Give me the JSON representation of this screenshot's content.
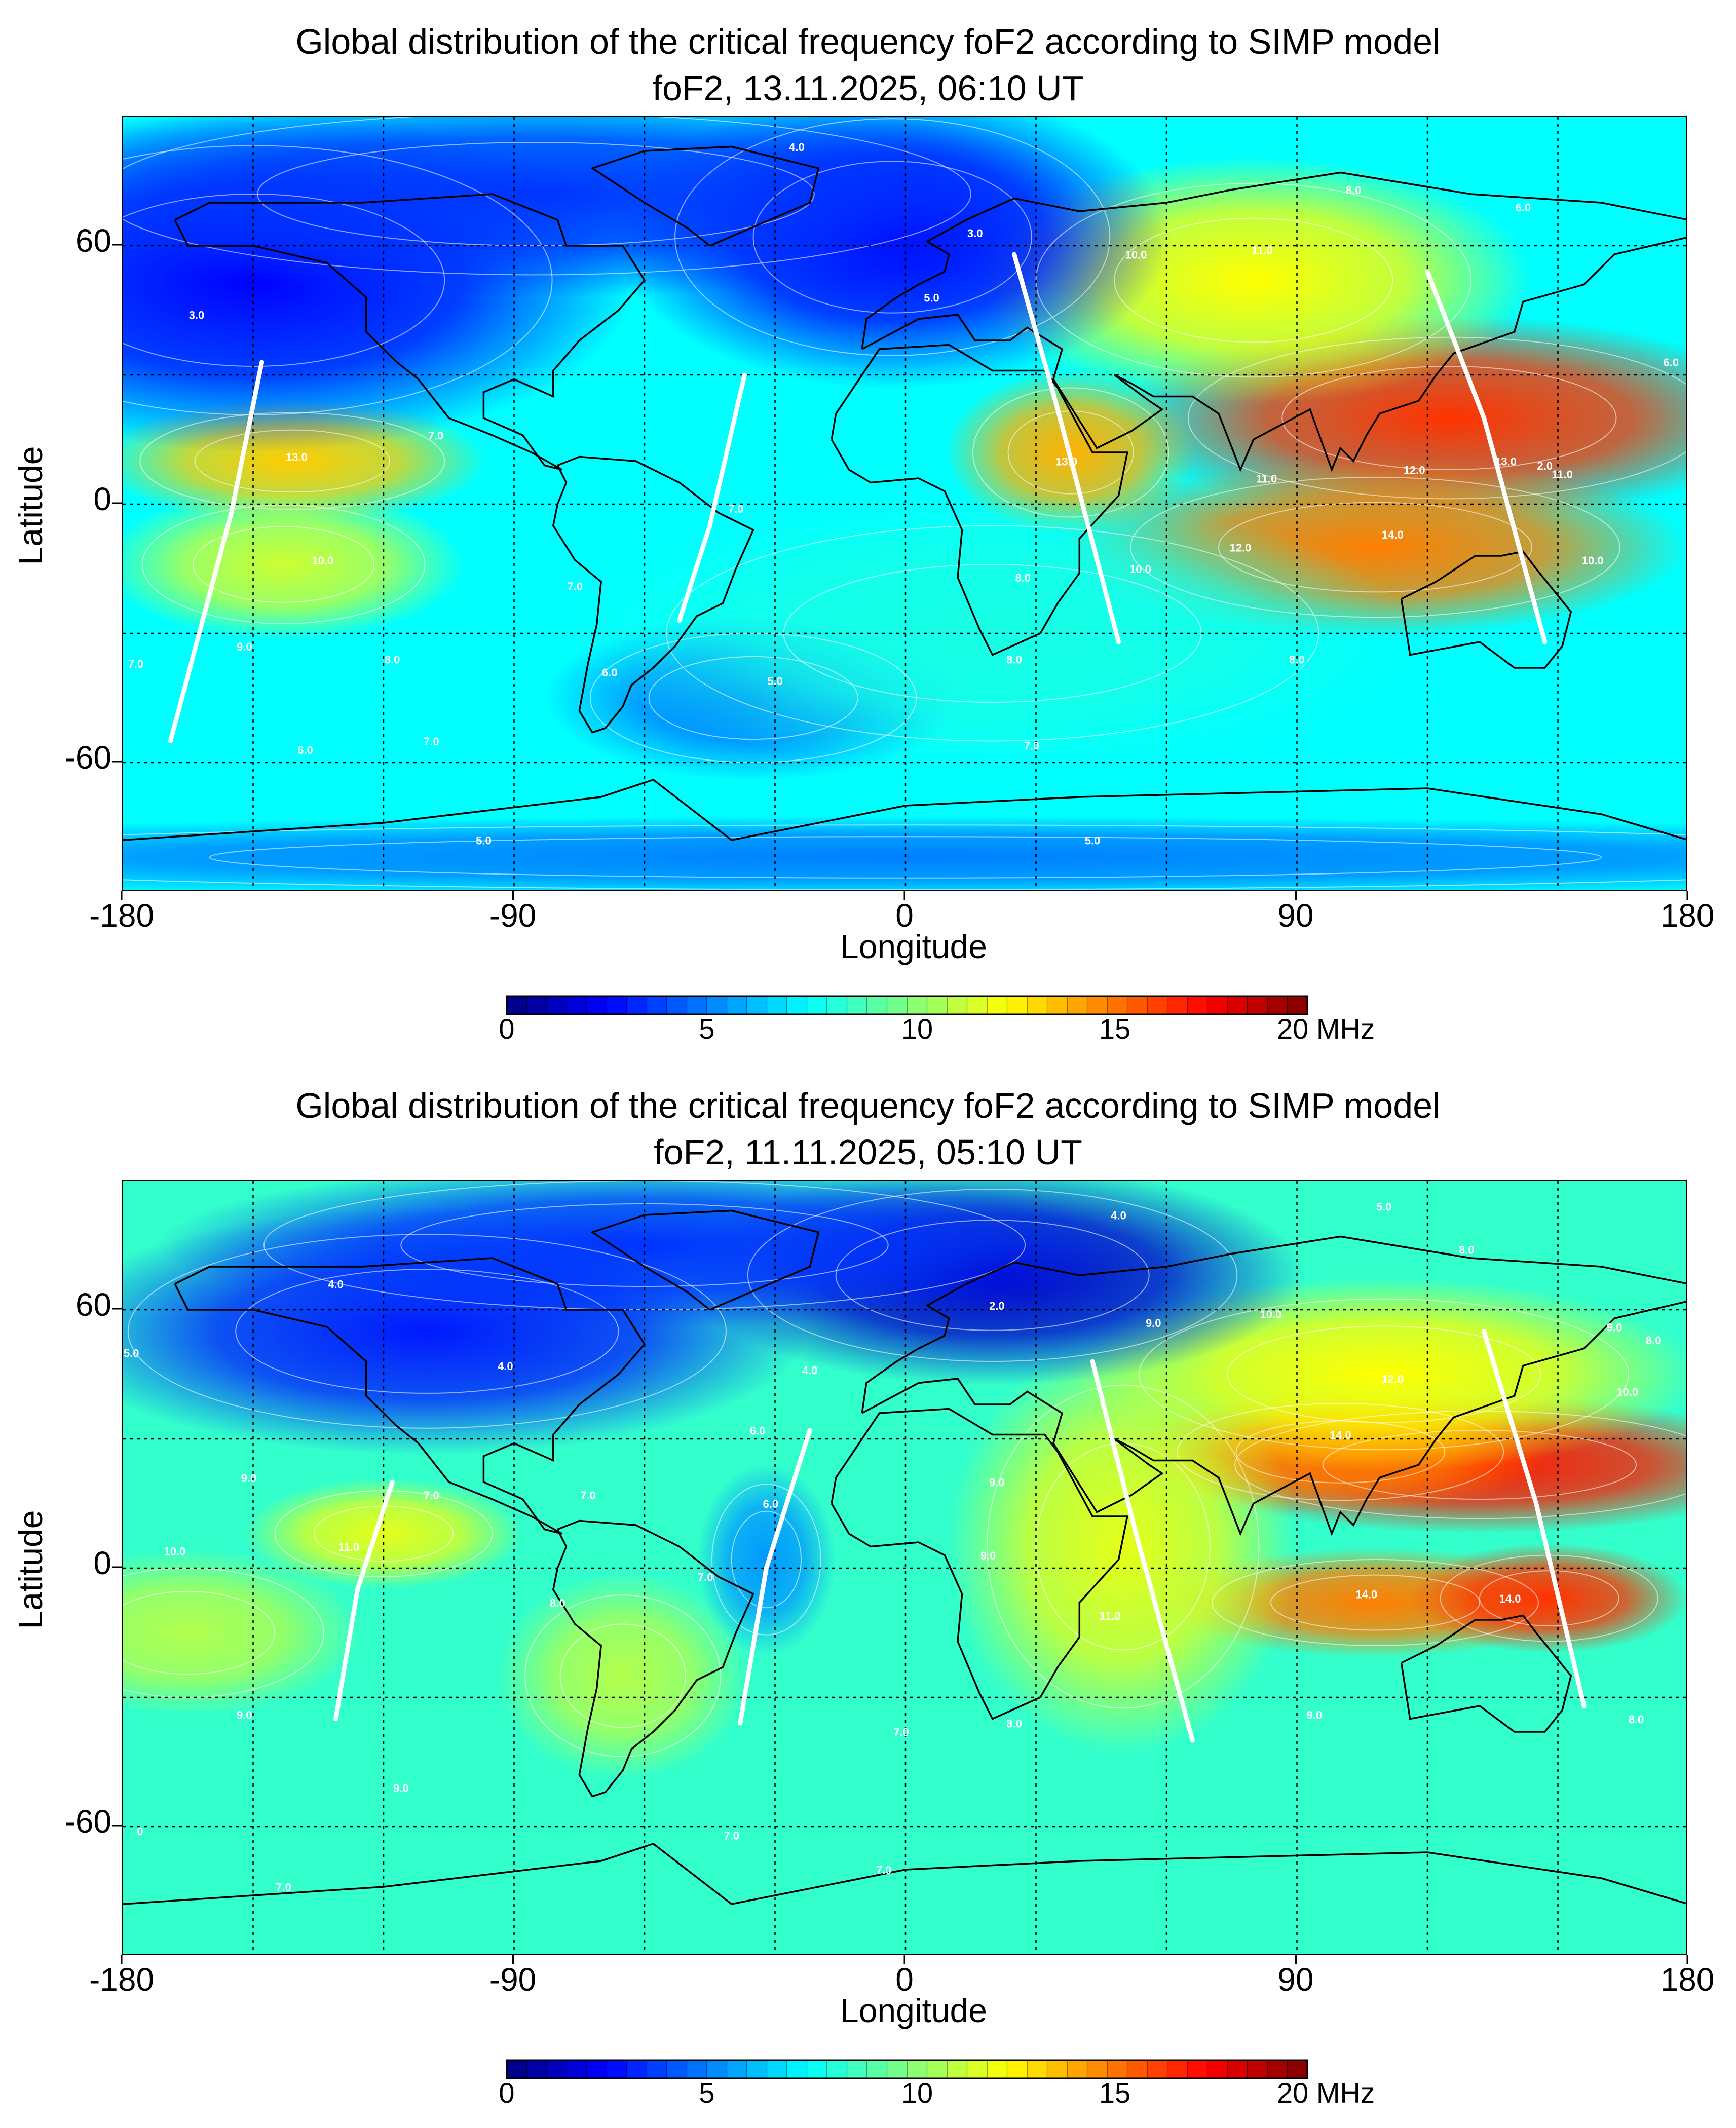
{
  "charts": [
    {
      "title": "Global distribution of the critical frequency foF2 according to SIMP model",
      "subtitle": "foF2, 13.11.2025, 06:10 UT",
      "xlabel": "Longitude",
      "ylabel": "Latitude",
      "x_ticks": [
        "-180",
        "-90",
        "0",
        "90",
        "180"
      ],
      "y_ticks": [
        "60",
        "0",
        "-60"
      ],
      "colorbar_ticks": [
        "0",
        "5",
        "10",
        "15",
        "20 MHz"
      ],
      "contour_labels": [
        {
          "text": "4.0",
          "lon": -25,
          "lat": 82
        },
        {
          "text": "3.0",
          "lon": -163,
          "lat": 43
        },
        {
          "text": "3.0",
          "lon": 16,
          "lat": 62
        },
        {
          "text": "5.0",
          "lon": 6,
          "lat": 47
        },
        {
          "text": "8.0",
          "lon": 103,
          "lat": 72
        },
        {
          "text": "6.0",
          "lon": 142,
          "lat": 68
        },
        {
          "text": "10.0",
          "lon": 53,
          "lat": 57
        },
        {
          "text": "11.0",
          "lon": 82,
          "lat": 58
        },
        {
          "text": "6.0",
          "lon": 176,
          "lat": 32
        },
        {
          "text": "13.0",
          "lon": -140,
          "lat": 10
        },
        {
          "text": "13.0",
          "lon": 37,
          "lat": 9
        },
        {
          "text": "13.0",
          "lon": 138,
          "lat": 9
        },
        {
          "text": "2.0",
          "lon": 147,
          "lat": 8
        },
        {
          "text": "11.0",
          "lon": 151,
          "lat": 6
        },
        {
          "text": "12.0",
          "lon": 117,
          "lat": 7
        },
        {
          "text": "11.0",
          "lon": 83,
          "lat": 5
        },
        {
          "text": "14.0",
          "lon": 112,
          "lat": -8
        },
        {
          "text": "12.0",
          "lon": 77,
          "lat": -11
        },
        {
          "text": "10.0",
          "lon": 158,
          "lat": -14
        },
        {
          "text": "10.0",
          "lon": 54,
          "lat": -16
        },
        {
          "text": "7.0",
          "lon": -108,
          "lat": 15
        },
        {
          "text": "10.0",
          "lon": -134,
          "lat": -14
        },
        {
          "text": "7.0",
          "lon": -76,
          "lat": -20
        },
        {
          "text": "7.0",
          "lon": -39,
          "lat": -2
        },
        {
          "text": "8.0",
          "lon": 27,
          "lat": -18
        },
        {
          "text": "8.0",
          "lon": 25,
          "lat": -37
        },
        {
          "text": "9.0",
          "lon": -152,
          "lat": -34
        },
        {
          "text": "8.0",
          "lon": -118,
          "lat": -37
        },
        {
          "text": "7.0",
          "lon": -177,
          "lat": -38
        },
        {
          "text": "6.0",
          "lon": -68,
          "lat": -40
        },
        {
          "text": "5.0",
          "lon": -30,
          "lat": -42
        },
        {
          "text": "7.0",
          "lon": -109,
          "lat": -56
        },
        {
          "text": "6.0",
          "lon": -138,
          "lat": -58
        },
        {
          "text": "7.0",
          "lon": 29,
          "lat": -57
        },
        {
          "text": "8.0",
          "lon": 90,
          "lat": -37
        },
        {
          "text": "5.0",
          "lon": -97,
          "lat": -79
        },
        {
          "text": "5.0",
          "lon": 43,
          "lat": -79
        }
      ]
    },
    {
      "title": "Global distribution of the critical frequency foF2 according to SIMP model",
      "subtitle": "foF2, 11.11.2025, 05:10 UT",
      "xlabel": "Longitude",
      "ylabel": "Latitude",
      "x_ticks": [
        "-180",
        "-90",
        "0",
        "90",
        "180"
      ],
      "y_ticks": [
        "60",
        "0",
        "-60"
      ],
      "colorbar_ticks": [
        "0",
        "5",
        "10",
        "15",
        "20 MHz"
      ],
      "contour_labels": [
        {
          "text": "5.0",
          "lon": 110,
          "lat": 83
        },
        {
          "text": "4.0",
          "lon": 49,
          "lat": 81
        },
        {
          "text": "4.0",
          "lon": -131,
          "lat": 65
        },
        {
          "text": "2.0",
          "lon": 21,
          "lat": 60
        },
        {
          "text": "8.0",
          "lon": 129,
          "lat": 73
        },
        {
          "text": "10.0",
          "lon": 84,
          "lat": 58
        },
        {
          "text": "9.0",
          "lon": 57,
          "lat": 56
        },
        {
          "text": "9.0",
          "lon": 163,
          "lat": 55
        },
        {
          "text": "8.0",
          "lon": 172,
          "lat": 52
        },
        {
          "text": "12.0",
          "lon": 112,
          "lat": 43
        },
        {
          "text": "10.0",
          "lon": 166,
          "lat": 40
        },
        {
          "text": "14.0",
          "lon": 100,
          "lat": 30
        },
        {
          "text": "4.0",
          "lon": -92,
          "lat": 46
        },
        {
          "text": "4.0",
          "lon": -22,
          "lat": 45
        },
        {
          "text": "5.0",
          "lon": -178,
          "lat": 49
        },
        {
          "text": "6.0",
          "lon": -34,
          "lat": 31
        },
        {
          "text": "6.0",
          "lon": -31,
          "lat": 14
        },
        {
          "text": "9.0",
          "lon": -151,
          "lat": 20
        },
        {
          "text": "7.0",
          "lon": -109,
          "lat": 16
        },
        {
          "text": "7.0",
          "lon": -73,
          "lat": 16
        },
        {
          "text": "11.0",
          "lon": -128,
          "lat": 4
        },
        {
          "text": "10.0",
          "lon": -168,
          "lat": 3
        },
        {
          "text": "9.0",
          "lon": 21,
          "lat": 19
        },
        {
          "text": "9.0",
          "lon": 19,
          "lat": 2
        },
        {
          "text": "7.0",
          "lon": -46,
          "lat": -3
        },
        {
          "text": "11.0",
          "lon": 47,
          "lat": -12
        },
        {
          "text": "14.0",
          "lon": 106,
          "lat": -7
        },
        {
          "text": "14.0",
          "lon": 139,
          "lat": -8
        },
        {
          "text": "8.0",
          "lon": -80,
          "lat": -9
        },
        {
          "text": "9.0",
          "lon": -152,
          "lat": -35
        },
        {
          "text": "9.0",
          "lon": 94,
          "lat": -35
        },
        {
          "text": "8.0",
          "lon": 168,
          "lat": -36
        },
        {
          "text": "7.0",
          "lon": -1,
          "lat": -39
        },
        {
          "text": "8.0",
          "lon": 25,
          "lat": -37
        },
        {
          "text": "9.0",
          "lon": -116,
          "lat": -52
        },
        {
          "text": "7.0",
          "lon": -40,
          "lat": -63
        },
        {
          "text": "7.0",
          "lon": -143,
          "lat": -75
        },
        {
          "text": "7.0",
          "lon": -5,
          "lat": -71
        },
        {
          "text": "0",
          "lon": -176,
          "lat": -62
        }
      ]
    }
  ],
  "colors": {
    "scale": [
      "#00007f",
      "#0000ff",
      "#007fff",
      "#00ffff",
      "#7fff7f",
      "#ffff00",
      "#ff7f00",
      "#ff0000",
      "#7f0000"
    ],
    "contour": "#ffffff",
    "coastline": "#000000"
  },
  "chart_data": [
    {
      "type": "heatmap",
      "title": "Global distribution of the critical frequency foF2 according to SIMP model",
      "subtitle": "foF2, 13.11.2025, 06:10 UT",
      "xlabel": "Longitude",
      "ylabel": "Latitude",
      "xlim": [
        -180,
        180
      ],
      "ylim": [
        -90,
        90
      ],
      "x_ticks": [
        -180,
        -90,
        0,
        90,
        180
      ],
      "y_ticks": [
        -60,
        0,
        60
      ],
      "grid": true,
      "colorbar": {
        "min": 0,
        "max": 20,
        "unit": "MHz",
        "ticks": [
          0,
          5,
          10,
          15,
          20
        ]
      },
      "background_value": 7.5,
      "field_features": [
        {
          "lon": 125,
          "lat": 20,
          "value": 16.5,
          "spread_lon": 48,
          "spread_lat": 15
        },
        {
          "lon": 108,
          "lat": -10,
          "value": 15,
          "spread_lon": 45,
          "spread_lat": 13
        },
        {
          "lon": 80,
          "lat": 52,
          "value": 12.5,
          "spread_lon": 40,
          "spread_lat": 18
        },
        {
          "lon": 38,
          "lat": 12,
          "value": 14,
          "spread_lon": 18,
          "spread_lat": 12
        },
        {
          "lon": -141,
          "lat": 10,
          "value": 13.5,
          "spread_lon": 28,
          "spread_lat": 9
        },
        {
          "lon": -143,
          "lat": -14,
          "value": 11.5,
          "spread_lon": 26,
          "spread_lat": 11
        },
        {
          "lon": -150,
          "lat": 52,
          "value": 2.5,
          "spread_lon": 55,
          "spread_lat": 25
        },
        {
          "lon": -3,
          "lat": 62,
          "value": 2.5,
          "spread_lon": 40,
          "spread_lat": 22
        },
        {
          "lon": -85,
          "lat": 72,
          "value": 3.5,
          "spread_lon": 80,
          "spread_lat": 15
        },
        {
          "lon": -35,
          "lat": -45,
          "value": 5.0,
          "spread_lon": 30,
          "spread_lat": 12
        },
        {
          "lon": 0,
          "lat": -82,
          "value": 5.0,
          "spread_lon": 200,
          "spread_lat": 6
        },
        {
          "lon": 20,
          "lat": -30,
          "value": 8.0,
          "spread_lon": 60,
          "spread_lat": 20
        }
      ],
      "satellite_tracks": [
        {
          "points": [
            [
              -148,
              33
            ],
            [
              -155,
              -2
            ],
            [
              -169,
              -55
            ]
          ]
        },
        {
          "points": [
            [
              -37,
              30
            ],
            [
              -45,
              -5
            ],
            [
              -52,
              -27
            ]
          ]
        },
        {
          "points": [
            [
              25,
              58
            ],
            [
              35,
              22
            ],
            [
              49,
              -32
            ]
          ]
        },
        {
          "points": [
            [
              120,
              54
            ],
            [
              133,
              20
            ],
            [
              147,
              -32
            ]
          ]
        }
      ]
    },
    {
      "type": "heatmap",
      "title": "Global distribution of the critical frequency foF2 according to SIMP model",
      "subtitle": "foF2, 11.11.2025, 05:10 UT",
      "xlabel": "Longitude",
      "ylabel": "Latitude",
      "xlim": [
        -180,
        180
      ],
      "ylim": [
        -90,
        90
      ],
      "x_ticks": [
        -180,
        -90,
        0,
        90,
        180
      ],
      "y_ticks": [
        -60,
        0,
        60
      ],
      "grid": true,
      "colorbar": {
        "min": 0,
        "max": 20,
        "unit": "MHz",
        "ticks": [
          0,
          5,
          10,
          15,
          20
        ]
      },
      "background_value": 8.5,
      "field_features": [
        {
          "lon": 132,
          "lat": 24,
          "value": 17,
          "spread_lon": 45,
          "spread_lat": 10
        },
        {
          "lon": 100,
          "lat": 27,
          "value": 15,
          "spread_lon": 30,
          "spread_lat": 9
        },
        {
          "lon": 108,
          "lat": -8,
          "value": 15,
          "spread_lon": 30,
          "spread_lat": 8
        },
        {
          "lon": 148,
          "lat": -7,
          "value": 16.5,
          "spread_lon": 20,
          "spread_lat": 8
        },
        {
          "lon": 110,
          "lat": 45,
          "value": 12.5,
          "spread_lon": 45,
          "spread_lat": 14
        },
        {
          "lon": 50,
          "lat": 5,
          "value": 12,
          "spread_lon": 25,
          "spread_lat": 30
        },
        {
          "lon": -120,
          "lat": 8,
          "value": 12,
          "spread_lon": 20,
          "spread_lat": 8
        },
        {
          "lon": -165,
          "lat": -15,
          "value": 11,
          "spread_lon": 25,
          "spread_lat": 12
        },
        {
          "lon": -65,
          "lat": -25,
          "value": 11,
          "spread_lon": 18,
          "spread_lat": 15
        },
        {
          "lon": 20,
          "lat": 68,
          "value": 1.5,
          "spread_lon": 45,
          "spread_lat": 16
        },
        {
          "lon": -110,
          "lat": 55,
          "value": 3.0,
          "spread_lon": 55,
          "spread_lat": 18
        },
        {
          "lon": -32,
          "lat": 2,
          "value": 5.5,
          "spread_lon": 10,
          "spread_lat": 14
        },
        {
          "lon": -60,
          "lat": 75,
          "value": 3.5,
          "spread_lon": 70,
          "spread_lat": 12
        }
      ],
      "satellite_tracks": [
        {
          "points": [
            [
              -118,
              20
            ],
            [
              -126,
              -5
            ],
            [
              -131,
              -35
            ]
          ]
        },
        {
          "points": [
            [
              -22,
              32
            ],
            [
              -32,
              0
            ],
            [
              -38,
              -36
            ]
          ]
        },
        {
          "points": [
            [
              43,
              48
            ],
            [
              53,
              8
            ],
            [
              66,
              -40
            ]
          ]
        },
        {
          "points": [
            [
              133,
              55
            ],
            [
              145,
              15
            ],
            [
              156,
              -32
            ]
          ]
        }
      ]
    }
  ]
}
